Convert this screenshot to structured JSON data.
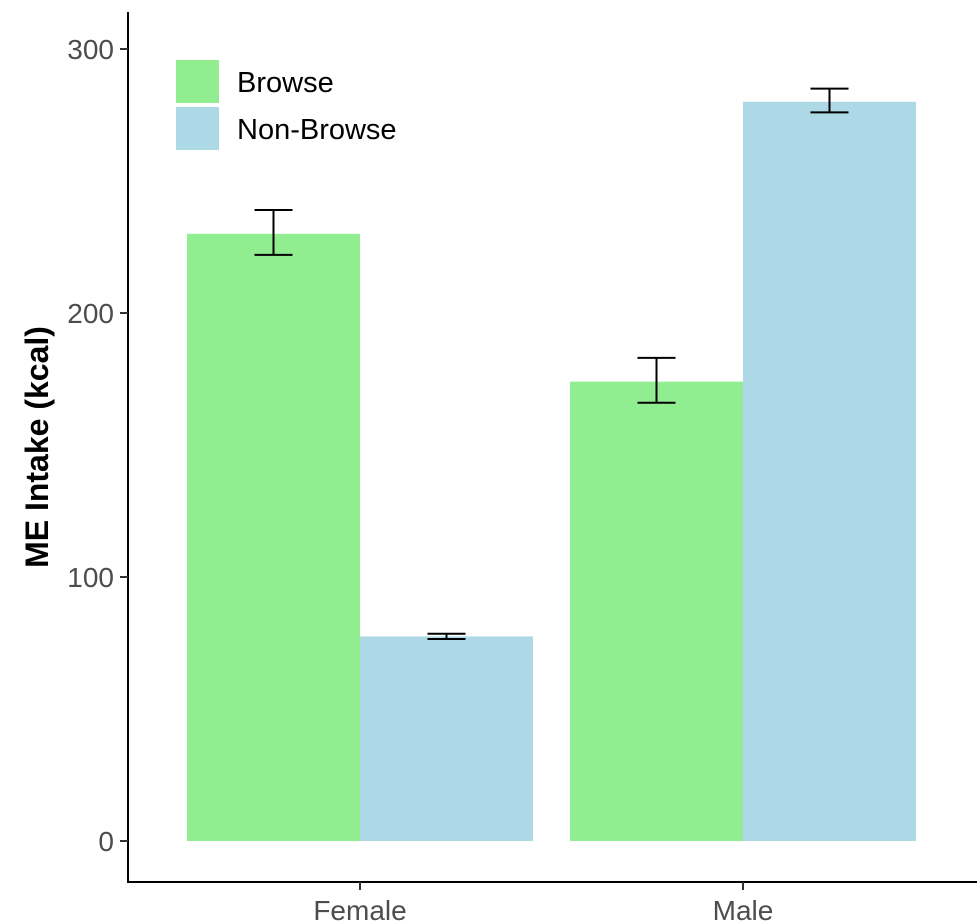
{
  "chart_data": {
    "type": "bar",
    "title": "",
    "xlabel": "",
    "ylabel": "ME Intake (kcal)",
    "categories": [
      "Female",
      "Male"
    ],
    "series": [
      {
        "name": "Browse",
        "color": "#90EE90",
        "values": [
          230,
          174
        ],
        "error": [
          [
            222,
            239
          ],
          [
            166,
            183
          ]
        ]
      },
      {
        "name": "Non-Browse",
        "color": "#ADD8E6",
        "values": [
          77.5,
          280
        ],
        "error": [
          [
            76.5,
            78.5
          ],
          [
            276,
            285
          ]
        ]
      }
    ],
    "ylim": [
      0,
      300
    ],
    "yticks": [
      0,
      100,
      200,
      300
    ],
    "grid": false,
    "legend_position": "top-left"
  }
}
